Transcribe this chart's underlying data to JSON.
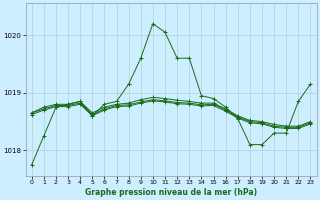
{
  "title": "Graphe pression niveau de la mer (hPa)",
  "background_color": "#cceeff",
  "plot_bg_color": "#cceeff",
  "grid_color": "#b0d0d0",
  "line_color": "#1a6b1a",
  "xlim": [
    -0.5,
    23.5
  ],
  "ylim": [
    1017.55,
    1020.55
  ],
  "yticks": [
    1018,
    1019,
    1020
  ],
  "xticks": [
    0,
    1,
    2,
    3,
    4,
    5,
    6,
    7,
    8,
    9,
    10,
    11,
    12,
    13,
    14,
    15,
    16,
    17,
    18,
    19,
    20,
    21,
    22,
    23
  ],
  "series": [
    [
      1017.75,
      1018.25,
      1018.75,
      1018.8,
      1018.85,
      1018.6,
      1018.8,
      1018.85,
      1019.15,
      1019.6,
      1020.2,
      1020.05,
      1019.6,
      1019.6,
      1018.95,
      1018.9,
      1018.75,
      1018.55,
      1018.1,
      1018.1,
      1018.3,
      1018.3,
      1018.85,
      1019.15
    ],
    [
      1018.65,
      1018.75,
      1018.8,
      1018.8,
      1018.85,
      1018.65,
      1018.75,
      1018.8,
      1018.82,
      1018.88,
      1018.92,
      1018.9,
      1018.87,
      1018.85,
      1018.82,
      1018.82,
      1018.72,
      1018.6,
      1018.52,
      1018.5,
      1018.45,
      1018.42,
      1018.42,
      1018.5
    ],
    [
      1018.65,
      1018.72,
      1018.78,
      1018.78,
      1018.82,
      1018.62,
      1018.72,
      1018.78,
      1018.79,
      1018.84,
      1018.88,
      1018.86,
      1018.83,
      1018.82,
      1018.79,
      1018.8,
      1018.7,
      1018.58,
      1018.5,
      1018.48,
      1018.42,
      1018.4,
      1018.4,
      1018.48
    ],
    [
      1018.62,
      1018.7,
      1018.76,
      1018.76,
      1018.8,
      1018.6,
      1018.7,
      1018.76,
      1018.77,
      1018.82,
      1018.86,
      1018.84,
      1018.81,
      1018.8,
      1018.77,
      1018.78,
      1018.68,
      1018.56,
      1018.48,
      1018.46,
      1018.4,
      1018.38,
      1018.38,
      1018.46
    ]
  ]
}
